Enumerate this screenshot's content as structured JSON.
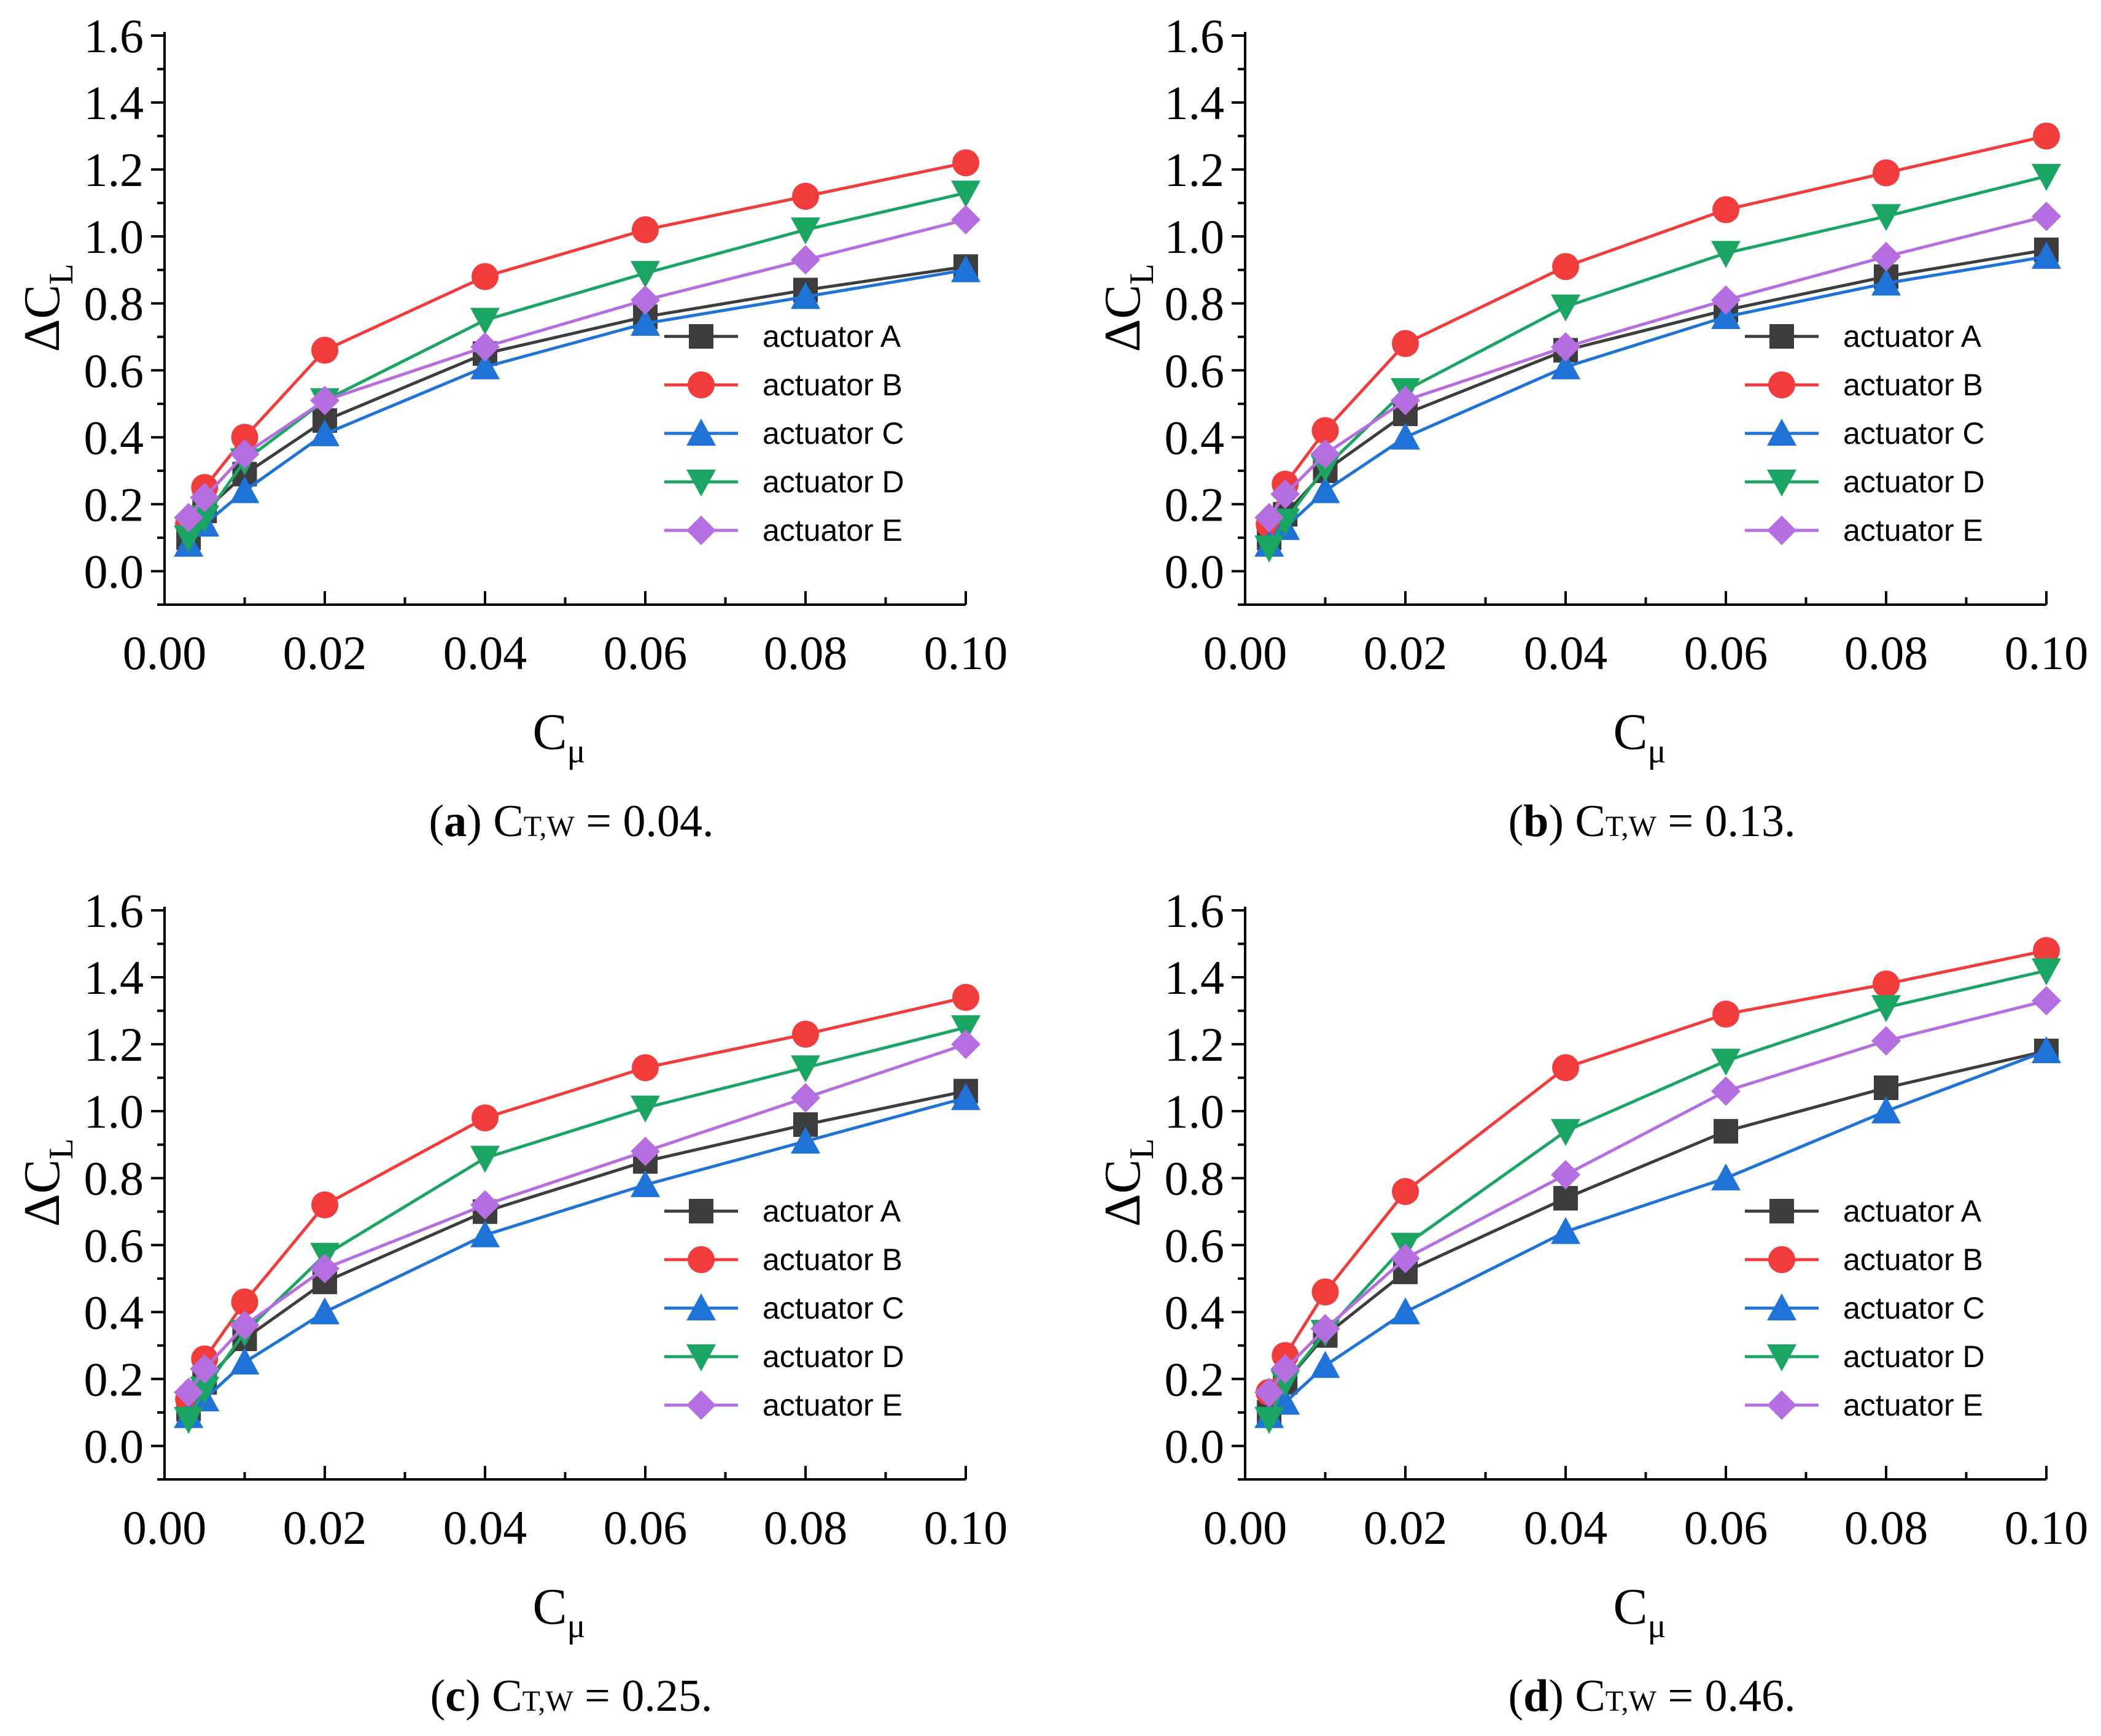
{
  "chart_data": [
    {
      "type": "line",
      "caption": {
        "letter": "a",
        "prefix": "C",
        "sub": "T,W",
        "value": "= 0.04."
      },
      "xlabel": "C",
      "xlabel_sub": "μ",
      "ylabel": "ΔC",
      "ylabel_sub": "L",
      "xlim": [
        0.0,
        0.1
      ],
      "ylim": [
        -0.1,
        1.6
      ],
      "x_ticks": [
        "0.00",
        "0.02",
        "0.04",
        "0.06",
        "0.08",
        "0.10"
      ],
      "y_ticks": [
        "0.0",
        "0.2",
        "0.4",
        "0.6",
        "0.8",
        "1.0",
        "1.2",
        "1.4",
        "1.6"
      ],
      "x": [
        0.003,
        0.005,
        0.01,
        0.02,
        0.04,
        0.06,
        0.08,
        0.1
      ],
      "series": [
        {
          "name": "actuator A",
          "values": [
            0.1,
            0.18,
            0.29,
            0.45,
            0.65,
            0.76,
            0.84,
            0.91
          ]
        },
        {
          "name": "actuator B",
          "values": [
            0.14,
            0.25,
            0.4,
            0.66,
            0.88,
            1.02,
            1.12,
            1.22
          ]
        },
        {
          "name": "actuator C",
          "values": [
            0.08,
            0.14,
            0.24,
            0.41,
            0.61,
            0.74,
            0.82,
            0.9
          ]
        },
        {
          "name": "actuator D",
          "values": [
            0.1,
            0.16,
            0.33,
            0.51,
            0.75,
            0.89,
            1.02,
            1.13
          ]
        },
        {
          "name": "actuator E",
          "values": [
            0.16,
            0.22,
            0.35,
            0.51,
            0.67,
            0.81,
            0.93,
            1.05
          ]
        }
      ]
    },
    {
      "type": "line",
      "caption": {
        "letter": "b",
        "prefix": "C",
        "sub": "T,W",
        "value": "= 0.13."
      },
      "xlabel": "C",
      "xlabel_sub": "μ",
      "ylabel": "ΔC",
      "ylabel_sub": "L",
      "xlim": [
        0.0,
        0.1
      ],
      "ylim": [
        -0.1,
        1.6
      ],
      "x_ticks": [
        "0.00",
        "0.02",
        "0.04",
        "0.06",
        "0.08",
        "0.10"
      ],
      "y_ticks": [
        "0.0",
        "0.2",
        "0.4",
        "0.6",
        "0.8",
        "1.0",
        "1.2",
        "1.4",
        "1.6"
      ],
      "x": [
        0.003,
        0.005,
        0.01,
        0.02,
        0.04,
        0.06,
        0.08,
        0.1
      ],
      "series": [
        {
          "name": "actuator A",
          "values": [
            0.1,
            0.17,
            0.3,
            0.47,
            0.66,
            0.78,
            0.88,
            0.96
          ]
        },
        {
          "name": "actuator B",
          "values": [
            0.14,
            0.26,
            0.42,
            0.68,
            0.91,
            1.08,
            1.19,
            1.3
          ]
        },
        {
          "name": "actuator C",
          "values": [
            0.08,
            0.13,
            0.24,
            0.4,
            0.61,
            0.76,
            0.86,
            0.94
          ]
        },
        {
          "name": "actuator D",
          "values": [
            0.07,
            0.15,
            0.31,
            0.54,
            0.79,
            0.95,
            1.06,
            1.18
          ]
        },
        {
          "name": "actuator E",
          "values": [
            0.16,
            0.23,
            0.35,
            0.51,
            0.67,
            0.81,
            0.94,
            1.06
          ]
        }
      ]
    },
    {
      "type": "line",
      "caption": {
        "letter": "c",
        "prefix": "C",
        "sub": "T,W",
        "value": "= 0.25."
      },
      "xlabel": "C",
      "xlabel_sub": "μ",
      "ylabel": "ΔC",
      "ylabel_sub": "L",
      "xlim": [
        0.0,
        0.1
      ],
      "ylim": [
        -0.1,
        1.6
      ],
      "x_ticks": [
        "0.00",
        "0.02",
        "0.04",
        "0.06",
        "0.08",
        "0.10"
      ],
      "y_ticks": [
        "0.0",
        "0.2",
        "0.4",
        "0.6",
        "0.8",
        "1.0",
        "1.2",
        "1.4",
        "1.6"
      ],
      "x": [
        0.003,
        0.005,
        0.01,
        0.02,
        0.04,
        0.06,
        0.08,
        0.1
      ],
      "series": [
        {
          "name": "actuator A",
          "values": [
            0.11,
            0.19,
            0.32,
            0.49,
            0.7,
            0.85,
            0.96,
            1.06
          ]
        },
        {
          "name": "actuator B",
          "values": [
            0.14,
            0.26,
            0.43,
            0.72,
            0.98,
            1.13,
            1.23,
            1.34
          ]
        },
        {
          "name": "actuator C",
          "values": [
            0.09,
            0.14,
            0.25,
            0.4,
            0.63,
            0.78,
            0.91,
            1.04
          ]
        },
        {
          "name": "actuator D",
          "values": [
            0.08,
            0.17,
            0.34,
            0.57,
            0.86,
            1.01,
            1.13,
            1.25
          ]
        },
        {
          "name": "actuator E",
          "values": [
            0.16,
            0.23,
            0.36,
            0.53,
            0.72,
            0.88,
            1.04,
            1.2
          ]
        }
      ]
    },
    {
      "type": "line",
      "caption": {
        "letter": "d",
        "prefix": "C",
        "sub": "T,W",
        "value": "= 0.46."
      },
      "xlabel": "C",
      "xlabel_sub": "μ",
      "ylabel": "ΔC",
      "ylabel_sub": "L",
      "xlim": [
        0.0,
        0.1
      ],
      "ylim": [
        -0.1,
        1.6
      ],
      "x_ticks": [
        "0.00",
        "0.02",
        "0.04",
        "0.06",
        "0.08",
        "0.10"
      ],
      "y_ticks": [
        "0.0",
        "0.2",
        "0.4",
        "0.6",
        "0.8",
        "1.0",
        "1.2",
        "1.4",
        "1.6"
      ],
      "x": [
        0.003,
        0.005,
        0.01,
        0.02,
        0.04,
        0.06,
        0.08,
        0.1
      ],
      "series": [
        {
          "name": "actuator A",
          "values": [
            0.1,
            0.19,
            0.33,
            0.52,
            0.74,
            0.94,
            1.07,
            1.18
          ]
        },
        {
          "name": "actuator B",
          "values": [
            0.16,
            0.27,
            0.46,
            0.76,
            1.13,
            1.29,
            1.38,
            1.48
          ]
        },
        {
          "name": "actuator C",
          "values": [
            0.09,
            0.13,
            0.24,
            0.4,
            0.64,
            0.8,
            1.0,
            1.18
          ]
        },
        {
          "name": "actuator D",
          "values": [
            0.08,
            0.19,
            0.34,
            0.6,
            0.94,
            1.15,
            1.31,
            1.42
          ]
        },
        {
          "name": "actuator E",
          "values": [
            0.16,
            0.23,
            0.35,
            0.56,
            0.81,
            1.06,
            1.21,
            1.33
          ]
        }
      ]
    }
  ],
  "series_style": {
    "actuator A": {
      "color": "#3d3d3d",
      "marker": "square"
    },
    "actuator B": {
      "color": "#f23c3c",
      "marker": "circle"
    },
    "actuator C": {
      "color": "#1f73d6",
      "marker": "triangle-up"
    },
    "actuator D": {
      "color": "#1aa563",
      "marker": "triangle-down"
    },
    "actuator E": {
      "color": "#b56ee0",
      "marker": "diamond"
    }
  }
}
